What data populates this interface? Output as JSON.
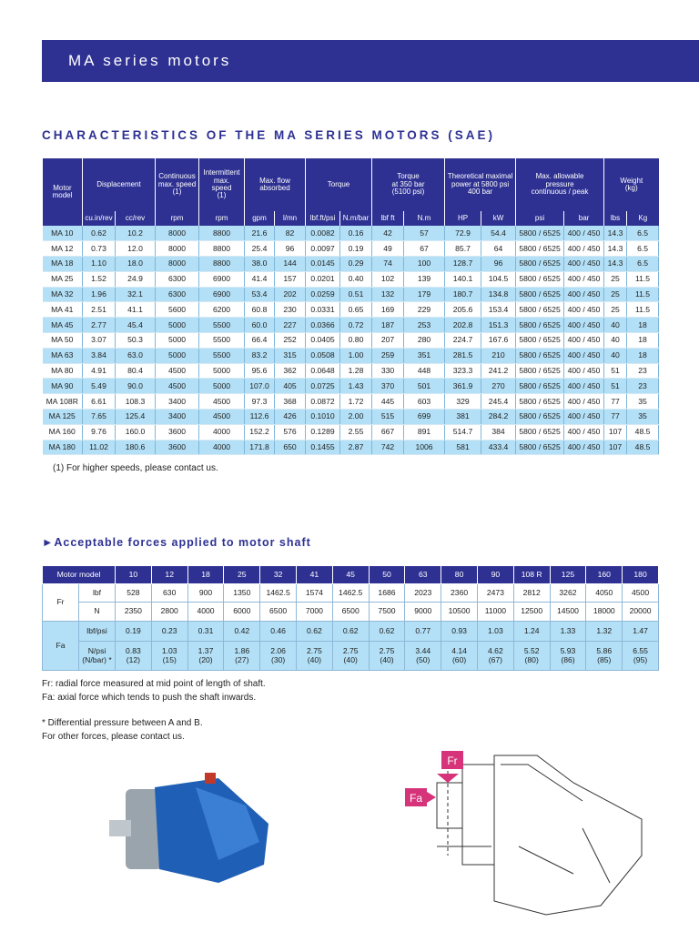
{
  "header": {
    "title": "MA series motors"
  },
  "characteristics": {
    "title": "CHARACTERISTICS OF THE MA SERIES MOTORS (SAE)",
    "groups": [
      "Motor\nmodel",
      "Displacement",
      "Continuous\nmax. speed\n(1)",
      "Intermittent\nmax.\nspeed\n(1)",
      "Max. flow\nabsorbed",
      "Torque",
      "Torque\nat 350 bar\n(5100 psi)",
      "Theoretical maximal\npower at 5800 psi\n400 bar",
      "Max. allowable\npressure\ncontinuous / peak",
      "Weight\n(kg)"
    ],
    "units": [
      "cu.in/rev",
      "cc/rev",
      "rpm",
      "rpm",
      "gpm",
      "l/mn",
      "lbf.ft/psi",
      "N.m/bar",
      "lbf ft",
      "N.m",
      "HP",
      "kW",
      "psi",
      "bar",
      "lbs",
      "Kg"
    ],
    "rows": [
      [
        "MA 10",
        "0.62",
        "10.2",
        "8000",
        "8800",
        "21.6",
        "82",
        "0.0082",
        "0.16",
        "42",
        "57",
        "72.9",
        "54.4",
        "5800 / 6525",
        "400 / 450",
        "14.3",
        "6.5"
      ],
      [
        "MA 12",
        "0.73",
        "12.0",
        "8000",
        "8800",
        "25.4",
        "96",
        "0.0097",
        "0.19",
        "49",
        "67",
        "85.7",
        "64",
        "5800 / 6525",
        "400 / 450",
        "14.3",
        "6.5"
      ],
      [
        "MA 18",
        "1.10",
        "18.0",
        "8000",
        "8800",
        "38.0",
        "144",
        "0.0145",
        "0.29",
        "74",
        "100",
        "128.7",
        "96",
        "5800 / 6525",
        "400 / 450",
        "14.3",
        "6.5"
      ],
      [
        "MA 25",
        "1.52",
        "24.9",
        "6300",
        "6900",
        "41.4",
        "157",
        "0.0201",
        "0.40",
        "102",
        "139",
        "140.1",
        "104.5",
        "5800 / 6525",
        "400 / 450",
        "25",
        "11.5"
      ],
      [
        "MA 32",
        "1.96",
        "32.1",
        "6300",
        "6900",
        "53.4",
        "202",
        "0.0259",
        "0.51",
        "132",
        "179",
        "180.7",
        "134.8",
        "5800 / 6525",
        "400 / 450",
        "25",
        "11.5"
      ],
      [
        "MA 41",
        "2.51",
        "41.1",
        "5600",
        "6200",
        "60.8",
        "230",
        "0.0331",
        "0.65",
        "169",
        "229",
        "205.6",
        "153.4",
        "5800 / 6525",
        "400 / 450",
        "25",
        "11.5"
      ],
      [
        "MA 45",
        "2.77",
        "45.4",
        "5000",
        "5500",
        "60.0",
        "227",
        "0.0366",
        "0.72",
        "187",
        "253",
        "202.8",
        "151.3",
        "5800 / 6525",
        "400 / 450",
        "40",
        "18"
      ],
      [
        "MA 50",
        "3.07",
        "50.3",
        "5000",
        "5500",
        "66.4",
        "252",
        "0.0405",
        "0.80",
        "207",
        "280",
        "224.7",
        "167.6",
        "5800 / 6525",
        "400 / 450",
        "40",
        "18"
      ],
      [
        "MA 63",
        "3.84",
        "63.0",
        "5000",
        "5500",
        "83.2",
        "315",
        "0.0508",
        "1.00",
        "259",
        "351",
        "281.5",
        "210",
        "5800 / 6525",
        "400 / 450",
        "40",
        "18"
      ],
      [
        "MA 80",
        "4.91",
        "80.4",
        "4500",
        "5000",
        "95.6",
        "362",
        "0.0648",
        "1.28",
        "330",
        "448",
        "323.3",
        "241.2",
        "5800 / 6525",
        "400 / 450",
        "51",
        "23"
      ],
      [
        "MA 90",
        "5.49",
        "90.0",
        "4500",
        "5000",
        "107.0",
        "405",
        "0.0725",
        "1.43",
        "370",
        "501",
        "361.9",
        "270",
        "5800 / 6525",
        "400 / 450",
        "51",
        "23"
      ],
      [
        "MA 108R",
        "6.61",
        "108.3",
        "3400",
        "4500",
        "97.3",
        "368",
        "0.0872",
        "1.72",
        "445",
        "603",
        "329",
        "245.4",
        "5800 / 6525",
        "400 / 450",
        "77",
        "35"
      ],
      [
        "MA 125",
        "7.65",
        "125.4",
        "3400",
        "4500",
        "112.6",
        "426",
        "0.1010",
        "2.00",
        "515",
        "699",
        "381",
        "284.2",
        "5800 / 6525",
        "400 / 450",
        "77",
        "35"
      ],
      [
        "MA 160",
        "9.76",
        "160.0",
        "3600",
        "4000",
        "152.2",
        "576",
        "0.1289",
        "2.55",
        "667",
        "891",
        "514.7",
        "384",
        "5800 / 6525",
        "400 / 450",
        "107",
        "48.5"
      ],
      [
        "MA 180",
        "11.02",
        "180.6",
        "3600",
        "4000",
        "171.8",
        "650",
        "0.1455",
        "2.87",
        "742",
        "1006",
        "581",
        "433.4",
        "5800 / 6525",
        "400 / 450",
        "107",
        "48.5"
      ]
    ],
    "note": "(1) For higher speeds, please contact us."
  },
  "forces": {
    "title": "►Acceptable forces applied to motor shaft",
    "header": [
      "Motor model",
      "10",
      "12",
      "18",
      "25",
      "32",
      "41",
      "45",
      "50",
      "63",
      "80",
      "90",
      "108 R",
      "125",
      "160",
      "180"
    ],
    "rows": [
      {
        "group": "Fr",
        "label": "lbf",
        "values": [
          "528",
          "630",
          "900",
          "1350",
          "1462.5",
          "1574",
          "1462.5",
          "1686",
          "2023",
          "2360",
          "2473",
          "2812",
          "3262",
          "4050",
          "4500"
        ]
      },
      {
        "group": "Fr",
        "label": "N",
        "values": [
          "2350",
          "2800",
          "4000",
          "6000",
          "6500",
          "7000",
          "6500",
          "7500",
          "9000",
          "10500",
          "11000",
          "12500",
          "14500",
          "18000",
          "20000"
        ]
      },
      {
        "group": "Fa",
        "label": "lbf/psi",
        "values": [
          "0.19",
          "0.23",
          "0.31",
          "0.42",
          "0.46",
          "0.62",
          "0.62",
          "0.62",
          "0.77",
          "0.93",
          "1.03",
          "1.24",
          "1.33",
          "1.32",
          "1.47"
        ]
      },
      {
        "group": "Fa",
        "label": "N/psi\n(N/bar) *",
        "values": [
          "0.83\n(12)",
          "1.03\n(15)",
          "1.37\n(20)",
          "1.86\n(27)",
          "2.06\n(30)",
          "2.75\n(40)",
          "2.75\n(40)",
          "2.75\n(40)",
          "3.44\n(50)",
          "4.14\n(60)",
          "4.62\n(67)",
          "5.52\n(80)",
          "5.93\n(86)",
          "5.86\n(85)",
          "6.55\n(95)"
        ]
      }
    ]
  },
  "notes": [
    "Fr: radial force measured at mid point of length of shaft.",
    "Fa: axial force which tends to push the shaft inwards.",
    "* Differential pressure between A and B.",
    "For other forces, please contact us."
  ],
  "diagram": {
    "fr": "Fr",
    "fa": "Fa"
  }
}
